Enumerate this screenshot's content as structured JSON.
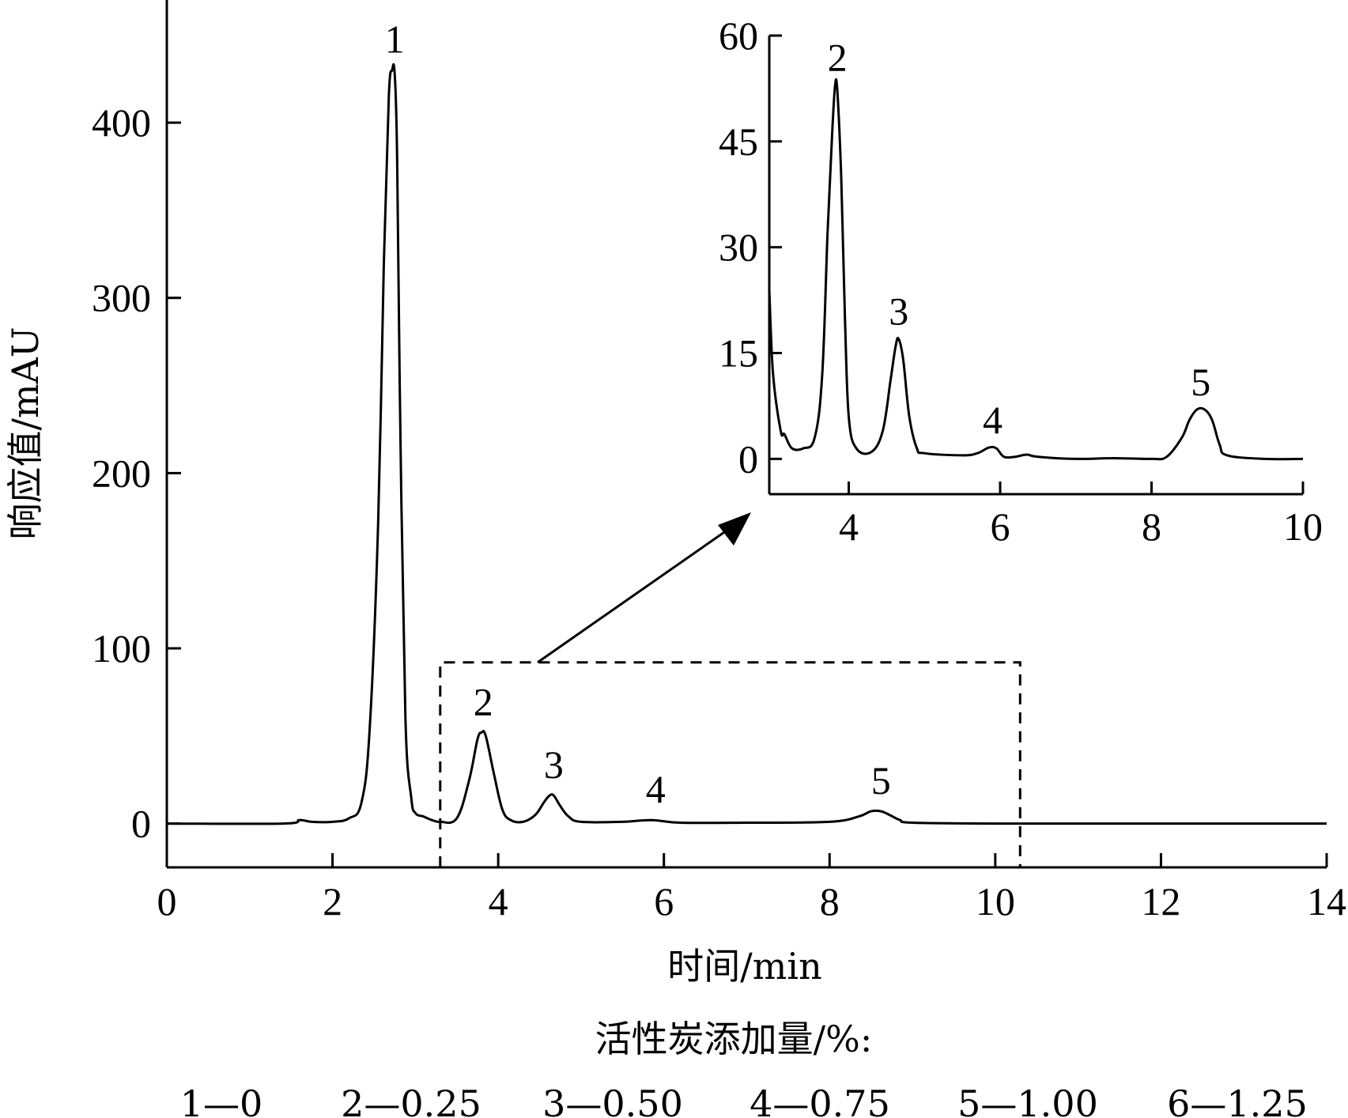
{
  "chart_data": [
    {
      "id": "main",
      "type": "line",
      "xlabel": "时间/min",
      "ylabel": "响应值/mAU",
      "xlim": [
        0,
        14
      ],
      "ylim": [
        -25,
        470
      ],
      "xticks": [
        0,
        2,
        4,
        6,
        8,
        10,
        12,
        14
      ],
      "xtick_labels": [
        "0",
        "2",
        "4",
        "6",
        "8",
        "10",
        "12",
        "14"
      ],
      "yticks": [
        0,
        100,
        200,
        300,
        400
      ],
      "ytick_labels": [
        "0",
        "100",
        "200",
        "300",
        "400"
      ],
      "grid": false,
      "series": [
        {
          "x": [
            0,
            1.4,
            1.6,
            1.75,
            2.0,
            2.2,
            2.35,
            2.45,
            2.55,
            2.62,
            2.68,
            2.72,
            2.75,
            2.78,
            2.82,
            2.88,
            2.95,
            3.0,
            3.1,
            3.2,
            3.3,
            3.5,
            3.65,
            3.75,
            3.8,
            3.85,
            3.95,
            4.05,
            4.15,
            4.3,
            4.45,
            4.55,
            4.62,
            4.67,
            4.75,
            4.85,
            5.0,
            5.5,
            5.85,
            6.2,
            7.0,
            8.0,
            8.35,
            8.5,
            8.62,
            8.72,
            8.85,
            9.0,
            10.0,
            12.0,
            14.0
          ],
          "y": [
            0,
            0,
            2,
            1,
            1,
            3,
            12,
            55,
            170,
            320,
            415,
            430,
            428,
            380,
            220,
            60,
            15,
            6,
            4,
            2,
            1,
            3,
            25,
            48,
            52,
            50,
            28,
            8,
            2,
            1,
            5,
            12,
            16,
            16,
            10,
            4,
            1,
            1,
            2,
            0.5,
            0.5,
            1,
            4,
            7,
            7,
            5,
            2,
            0.5,
            0,
            0,
            0
          ]
        }
      ],
      "peak_labels": [
        {
          "text": "1",
          "x": 2.75,
          "y": 430
        },
        {
          "text": "2",
          "x": 3.82,
          "y": 52
        },
        {
          "text": "3",
          "x": 4.67,
          "y": 16
        },
        {
          "text": "4",
          "x": 5.9,
          "y": 2
        },
        {
          "text": "5",
          "x": 8.62,
          "y": 7
        }
      ],
      "zoom_box": {
        "x": [
          3.3,
          10.3
        ],
        "y": [
          -25,
          92
        ]
      }
    },
    {
      "id": "inset",
      "type": "line",
      "xlim": [
        2.95,
        10
      ],
      "ylim": [
        -5,
        60
      ],
      "xticks": [
        4,
        6,
        8,
        10
      ],
      "xtick_labels": [
        "4",
        "6",
        "8",
        "10"
      ],
      "yticks": [
        0,
        15,
        30,
        45,
        60
      ],
      "ytick_labels": [
        "0",
        "15",
        "30",
        "45",
        "60"
      ],
      "grid": false,
      "series": [
        {
          "x": [
            2.95,
            3.0,
            3.1,
            3.15,
            3.25,
            3.4,
            3.55,
            3.65,
            3.72,
            3.78,
            3.82,
            3.85,
            3.9,
            3.95,
            4.0,
            4.1,
            4.3,
            4.45,
            4.55,
            4.62,
            4.66,
            4.72,
            4.8,
            4.9,
            5.0,
            5.5,
            5.7,
            5.85,
            5.95,
            6.05,
            6.2,
            6.35,
            6.5,
            7.0,
            7.5,
            8.0,
            8.2,
            8.4,
            8.5,
            8.6,
            8.7,
            8.8,
            8.9,
            9.0,
            9.5,
            10.0
          ],
          "y": [
            24,
            12,
            4,
            3.5,
            1.5,
            1.5,
            3,
            12,
            32,
            46,
            53,
            52,
            40,
            20,
            6,
            1.5,
            1,
            4,
            11,
            16,
            17,
            14,
            6,
            1.5,
            0.8,
            0.5,
            0.8,
            1.6,
            1.5,
            0.3,
            0.3,
            0.6,
            0.3,
            0,
            0.1,
            0,
            0.3,
            3,
            5.5,
            7,
            7,
            5.5,
            2,
            0.5,
            0,
            0
          ]
        }
      ],
      "peak_labels": [
        {
          "text": "2",
          "x": 3.85,
          "y": 53
        },
        {
          "text": "3",
          "x": 4.66,
          "y": 17
        },
        {
          "text": "4",
          "x": 5.9,
          "y": 1.6
        },
        {
          "text": "5",
          "x": 8.65,
          "y": 7
        }
      ]
    }
  ],
  "legend": {
    "title": "活性炭添加量/%:",
    "items": [
      "1—0",
      "2—0.25",
      "3—0.50",
      "4—0.75",
      "5—1.00",
      "6—1.25"
    ]
  }
}
